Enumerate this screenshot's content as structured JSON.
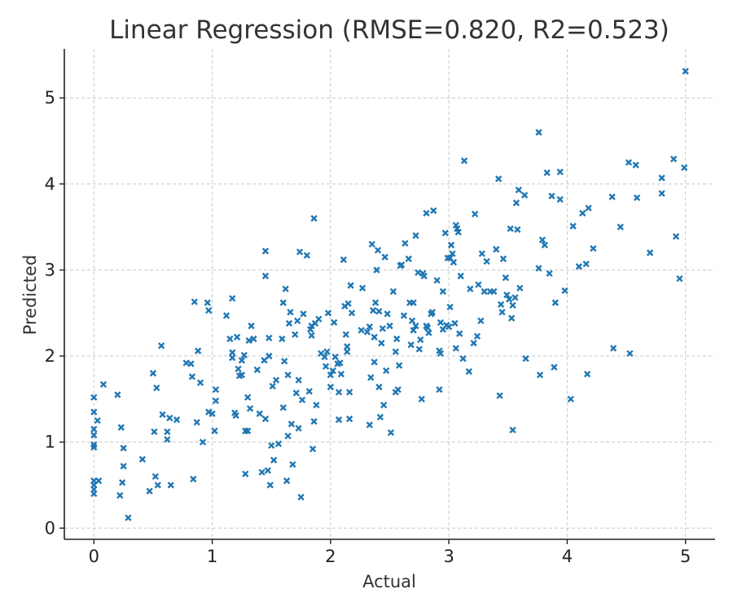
{
  "chart_data": {
    "type": "scatter",
    "title": "Linear Regression (RMSE=0.820, R2=0.523)",
    "xlabel": "Actual",
    "ylabel": "Predicted",
    "xlim": [
      -0.25,
      5.25
    ],
    "ylim": [
      -0.13,
      5.57
    ],
    "xticks": [
      "0",
      "1",
      "2",
      "3",
      "4",
      "5"
    ],
    "yticks": [
      "0",
      "1",
      "2",
      "3",
      "4",
      "5"
    ],
    "grid": true,
    "marker": "x",
    "color": "#1f77b4",
    "series": [
      {
        "points": [
          [
            0,
            1.52
          ],
          [
            0,
            1.35
          ],
          [
            0,
            1.15
          ],
          [
            0,
            1.08
          ],
          [
            0,
            0.97
          ],
          [
            0,
            0.94
          ],
          [
            0,
            0.55
          ],
          [
            0,
            0.5
          ],
          [
            0,
            0.45
          ],
          [
            0,
            0.4
          ],
          [
            0.03,
            1.25
          ],
          [
            0.04,
            0.55
          ],
          [
            0.08,
            1.67
          ],
          [
            0.2,
            1.55
          ],
          [
            0.22,
            0.38
          ],
          [
            0.23,
            1.17
          ],
          [
            0.24,
            0.53
          ],
          [
            0.25,
            0.93
          ],
          [
            0.25,
            0.72
          ],
          [
            0.29,
            0.12
          ],
          [
            0.41,
            0.8
          ],
          [
            0.47,
            0.43
          ],
          [
            0.5,
            1.8
          ],
          [
            0.51,
            1.12
          ],
          [
            0.52,
            0.6
          ],
          [
            0.53,
            1.63
          ],
          [
            0.54,
            0.5
          ],
          [
            0.57,
            2.12
          ],
          [
            0.58,
            1.32
          ],
          [
            0.62,
            1.12
          ],
          [
            0.62,
            1.03
          ],
          [
            0.64,
            1.28
          ],
          [
            0.65,
            0.5
          ],
          [
            0.7,
            1.26
          ],
          [
            0.78,
            1.92
          ],
          [
            0.82,
            1.91
          ],
          [
            0.83,
            1.76
          ],
          [
            0.84,
            0.57
          ],
          [
            0.85,
            2.63
          ],
          [
            0.87,
            1.23
          ],
          [
            0.88,
            2.06
          ],
          [
            0.9,
            1.69
          ],
          [
            0.92,
            1.0
          ],
          [
            0.96,
            2.62
          ],
          [
            0.97,
            1.35
          ],
          [
            0.97,
            2.53
          ],
          [
            1.0,
            1.33
          ],
          [
            1.02,
            1.13
          ],
          [
            1.03,
            1.61
          ],
          [
            1.03,
            1.48
          ],
          [
            1.12,
            2.47
          ],
          [
            1.15,
            2.2
          ],
          [
            1.17,
            2.67
          ],
          [
            1.17,
            2.04
          ],
          [
            1.17,
            1.98
          ],
          [
            1.19,
            1.34
          ],
          [
            1.2,
            1.31
          ],
          [
            1.21,
            2.22
          ],
          [
            1.22,
            1.85
          ],
          [
            1.23,
            1.77
          ],
          [
            1.25,
            1.78
          ],
          [
            1.25,
            1.95
          ],
          [
            1.27,
            2.01
          ],
          [
            1.28,
            1.13
          ],
          [
            1.28,
            0.63
          ],
          [
            1.3,
            1.13
          ],
          [
            1.3,
            1.52
          ],
          [
            1.31,
            2.18
          ],
          [
            1.32,
            1.39
          ],
          [
            1.33,
            2.35
          ],
          [
            1.35,
            2.2
          ],
          [
            1.38,
            1.84
          ],
          [
            1.4,
            1.33
          ],
          [
            1.42,
            0.65
          ],
          [
            1.44,
            1.95
          ],
          [
            1.45,
            3.22
          ],
          [
            1.45,
            2.93
          ],
          [
            1.45,
            1.27
          ],
          [
            1.47,
            0.67
          ],
          [
            1.48,
            2.21
          ],
          [
            1.48,
            2.0
          ],
          [
            1.49,
            0.5
          ],
          [
            1.5,
            0.96
          ],
          [
            1.51,
            1.65
          ],
          [
            1.52,
            0.79
          ],
          [
            1.54,
            1.72
          ],
          [
            1.56,
            0.98
          ],
          [
            1.59,
            2.2
          ],
          [
            1.6,
            1.4
          ],
          [
            1.6,
            2.62
          ],
          [
            1.61,
            1.94
          ],
          [
            1.62,
            2.78
          ],
          [
            1.63,
            0.55
          ],
          [
            1.64,
            1.78
          ],
          [
            1.64,
            1.07
          ],
          [
            1.65,
            2.38
          ],
          [
            1.66,
            2.51
          ],
          [
            1.67,
            1.21
          ],
          [
            1.68,
            0.74
          ],
          [
            1.7,
            2.25
          ],
          [
            1.71,
            1.57
          ],
          [
            1.72,
            2.41
          ],
          [
            1.73,
            1.72
          ],
          [
            1.73,
            1.16
          ],
          [
            1.74,
            3.21
          ],
          [
            1.75,
            0.36
          ],
          [
            1.76,
            1.49
          ],
          [
            1.77,
            2.49
          ],
          [
            1.8,
            3.17
          ],
          [
            1.82,
            1.59
          ],
          [
            1.83,
            2.31
          ],
          [
            1.84,
            2.35
          ],
          [
            1.84,
            2.24
          ],
          [
            1.85,
            0.92
          ],
          [
            1.86,
            3.6
          ],
          [
            1.86,
            1.24
          ],
          [
            1.87,
            2.38
          ],
          [
            1.88,
            1.43
          ],
          [
            1.9,
            2.43
          ],
          [
            1.92,
            2.03
          ],
          [
            1.95,
            1.99
          ],
          [
            1.96,
            1.88
          ],
          [
            1.97,
            2.05
          ],
          [
            1.98,
            2.5
          ],
          [
            2.0,
            1.64
          ],
          [
            2.0,
            1.78
          ],
          [
            2.02,
            1.83
          ],
          [
            2.03,
            2.39
          ],
          [
            2.04,
            1.99
          ],
          [
            2.06,
            1.91
          ],
          [
            2.07,
            1.26
          ],
          [
            2.07,
            1.58
          ],
          [
            2.08,
            1.92
          ],
          [
            2.09,
            1.79
          ],
          [
            2.11,
            3.12
          ],
          [
            2.12,
            2.58
          ],
          [
            2.13,
            2.25
          ],
          [
            2.14,
            2.05
          ],
          [
            2.14,
            2.11
          ],
          [
            2.15,
            2.61
          ],
          [
            2.16,
            1.58
          ],
          [
            2.16,
            1.27
          ],
          [
            2.17,
            2.82
          ],
          [
            2.18,
            2.5
          ],
          [
            2.26,
            2.3
          ],
          [
            2.27,
            2.79
          ],
          [
            2.31,
            2.28
          ],
          [
            2.33,
            2.34
          ],
          [
            2.33,
            1.2
          ],
          [
            2.34,
            1.75
          ],
          [
            2.35,
            3.3
          ],
          [
            2.36,
            2.53
          ],
          [
            2.37,
            1.93
          ],
          [
            2.37,
            2.22
          ],
          [
            2.38,
            2.62
          ],
          [
            2.39,
            3.0
          ],
          [
            2.4,
            3.23
          ],
          [
            2.41,
            1.64
          ],
          [
            2.41,
            2.52
          ],
          [
            2.42,
            1.29
          ],
          [
            2.43,
            2.15
          ],
          [
            2.44,
            2.32
          ],
          [
            2.45,
            1.43
          ],
          [
            2.46,
            3.15
          ],
          [
            2.47,
            1.83
          ],
          [
            2.48,
            2.49
          ],
          [
            2.5,
            2.35
          ],
          [
            2.51,
            1.11
          ],
          [
            2.53,
            2.75
          ],
          [
            2.55,
            1.58
          ],
          [
            2.55,
            2.05
          ],
          [
            2.56,
            2.2
          ],
          [
            2.57,
            1.61
          ],
          [
            2.58,
            1.89
          ],
          [
            2.59,
            3.05
          ],
          [
            2.6,
            3.06
          ],
          [
            2.62,
            2.47
          ],
          [
            2.63,
            3.31
          ],
          [
            2.66,
            3.13
          ],
          [
            2.67,
            2.62
          ],
          [
            2.68,
            2.13
          ],
          [
            2.69,
            2.41
          ],
          [
            2.7,
            2.3
          ],
          [
            2.7,
            2.62
          ],
          [
            2.72,
            3.4
          ],
          [
            2.72,
            2.35
          ],
          [
            2.74,
            2.97
          ],
          [
            2.75,
            2.08
          ],
          [
            2.76,
            2.19
          ],
          [
            2.77,
            1.5
          ],
          [
            2.78,
            2.96
          ],
          [
            2.79,
            2.93
          ],
          [
            2.81,
            3.66
          ],
          [
            2.81,
            2.35
          ],
          [
            2.82,
            2.33
          ],
          [
            2.83,
            2.27
          ],
          [
            2.85,
            2.49
          ],
          [
            2.86,
            2.51
          ],
          [
            2.87,
            3.69
          ],
          [
            2.9,
            2.88
          ],
          [
            2.92,
            2.06
          ],
          [
            2.92,
            1.61
          ],
          [
            2.93,
            2.03
          ],
          [
            2.93,
            2.39
          ],
          [
            2.95,
            2.75
          ],
          [
            2.95,
            2.31
          ],
          [
            2.97,
            3.43
          ],
          [
            2.98,
            2.36
          ],
          [
            2.99,
            3.14
          ],
          [
            3.0,
            2.34
          ],
          [
            3.01,
            2.57
          ],
          [
            3.01,
            3.14
          ],
          [
            3.02,
            3.29
          ],
          [
            3.03,
            3.19
          ],
          [
            3.04,
            3.09
          ],
          [
            3.05,
            2.38
          ],
          [
            3.06,
            3.52
          ],
          [
            3.06,
            2.09
          ],
          [
            3.07,
            3.48
          ],
          [
            3.08,
            3.44
          ],
          [
            3.09,
            2.26
          ],
          [
            3.1,
            2.93
          ],
          [
            3.12,
            1.97
          ],
          [
            3.13,
            4.27
          ],
          [
            3.17,
            1.82
          ],
          [
            3.18,
            2.78
          ],
          [
            3.21,
            2.15
          ],
          [
            3.22,
            3.65
          ],
          [
            3.24,
            2.23
          ],
          [
            3.25,
            2.83
          ],
          [
            3.27,
            2.41
          ],
          [
            3.28,
            3.19
          ],
          [
            3.3,
            2.75
          ],
          [
            3.32,
            3.1
          ],
          [
            3.35,
            2.75
          ],
          [
            3.38,
            2.75
          ],
          [
            3.4,
            3.24
          ],
          [
            3.42,
            4.06
          ],
          [
            3.43,
            1.54
          ],
          [
            3.44,
            2.6
          ],
          [
            3.45,
            2.51
          ],
          [
            3.46,
            3.13
          ],
          [
            3.48,
            2.91
          ],
          [
            3.49,
            2.71
          ],
          [
            3.51,
            2.66
          ],
          [
            3.52,
            3.48
          ],
          [
            3.53,
            2.44
          ],
          [
            3.54,
            1.14
          ],
          [
            3.54,
            2.59
          ],
          [
            3.56,
            2.68
          ],
          [
            3.57,
            3.78
          ],
          [
            3.58,
            3.47
          ],
          [
            3.59,
            3.93
          ],
          [
            3.6,
            2.79
          ],
          [
            3.64,
            3.87
          ],
          [
            3.65,
            1.97
          ],
          [
            3.76,
            4.6
          ],
          [
            3.76,
            3.02
          ],
          [
            3.77,
            1.78
          ],
          [
            3.79,
            3.35
          ],
          [
            3.81,
            3.29
          ],
          [
            3.83,
            4.13
          ],
          [
            3.85,
            2.96
          ],
          [
            3.87,
            3.86
          ],
          [
            3.89,
            1.87
          ],
          [
            3.9,
            2.62
          ],
          [
            3.94,
            3.82
          ],
          [
            3.94,
            4.14
          ],
          [
            3.98,
            2.76
          ],
          [
            4.03,
            1.5
          ],
          [
            4.05,
            3.51
          ],
          [
            4.1,
            3.04
          ],
          [
            4.13,
            3.66
          ],
          [
            4.16,
            3.07
          ],
          [
            4.17,
            1.79
          ],
          [
            4.18,
            3.72
          ],
          [
            4.22,
            3.25
          ],
          [
            4.38,
            3.85
          ],
          [
            4.39,
            2.09
          ],
          [
            4.45,
            3.5
          ],
          [
            4.52,
            4.25
          ],
          [
            4.53,
            2.03
          ],
          [
            4.58,
            4.22
          ],
          [
            4.59,
            3.84
          ],
          [
            4.7,
            3.2
          ],
          [
            4.8,
            4.07
          ],
          [
            4.8,
            3.89
          ],
          [
            4.9,
            4.29
          ],
          [
            4.92,
            3.39
          ],
          [
            4.95,
            2.9
          ],
          [
            4.99,
            4.19
          ],
          [
            5.0,
            5.31
          ]
        ]
      }
    ]
  }
}
